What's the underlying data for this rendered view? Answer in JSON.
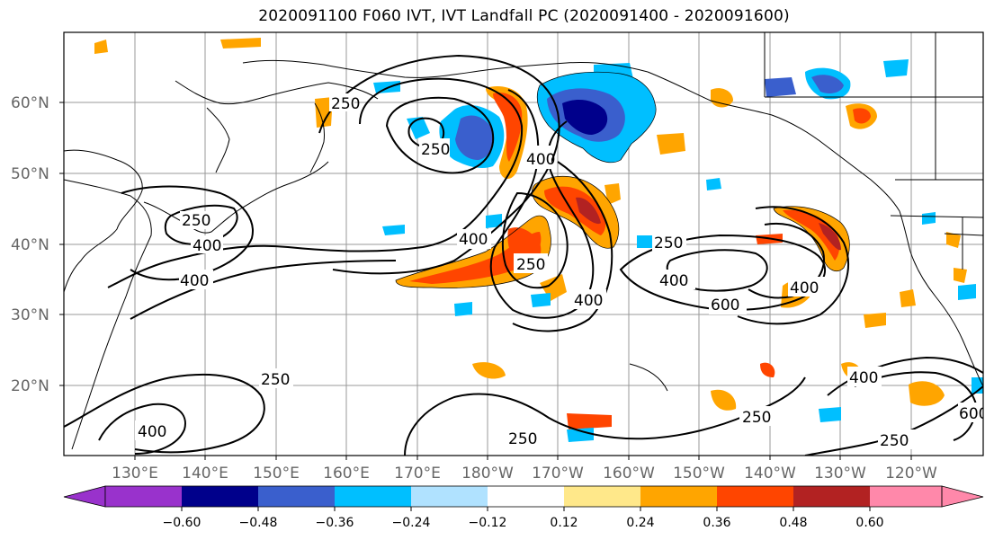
{
  "title": "2020091100 F060 IVT, IVT Landfall PC (2020091400 - 2020091600)",
  "lat_labels": [
    "60°N",
    "50°N",
    "40°N",
    "30°N",
    "20°N"
  ],
  "lon_labels": [
    "130°E",
    "140°E",
    "150°E",
    "160°E",
    "170°E",
    "180°W",
    "170°W",
    "160°W",
    "150°W",
    "140°W",
    "130°W",
    "120°W"
  ],
  "colorbar": {
    "ticks": [
      "−0.60",
      "−0.48",
      "−0.36",
      "−0.24",
      "−0.12",
      "0.12",
      "0.24",
      "0.36",
      "0.48",
      "0.60"
    ],
    "colors": [
      "#9932cc",
      "#00008b",
      "#3a5fcd",
      "#00bfff",
      "#b0e2ff",
      "#ffffff",
      "#ffe88a",
      "#ffa500",
      "#ff4500",
      "#b22222",
      "#ff88aa"
    ]
  },
  "contour_labels": [
    "250",
    "400",
    "600"
  ],
  "clabels": [
    {
      "text": "250"
    },
    {
      "text": "250"
    },
    {
      "text": "400"
    },
    {
      "text": "400"
    },
    {
      "text": "400"
    },
    {
      "text": "250"
    },
    {
      "text": "400"
    },
    {
      "text": "250"
    },
    {
      "text": "400"
    },
    {
      "text": "600"
    },
    {
      "text": "400"
    },
    {
      "text": "250"
    },
    {
      "text": "250"
    },
    {
      "text": "250"
    },
    {
      "text": "400"
    },
    {
      "text": "250"
    },
    {
      "text": "400"
    },
    {
      "text": "600"
    },
    {
      "text": "250"
    },
    {
      "text": "400"
    }
  ]
}
